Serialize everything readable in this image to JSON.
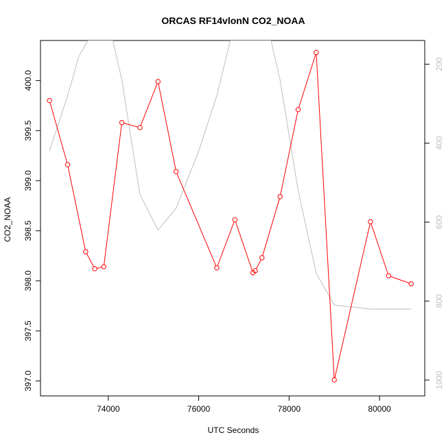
{
  "chart_data": {
    "type": "line",
    "title": "ORCAS RF14vlonN CO2_NOAA",
    "xlabel": "UTC Seconds",
    "ylabel": "CO2_NOAA",
    "xlim": [
      72500,
      81000
    ],
    "ylim": [
      396.85,
      400.4
    ],
    "x_ticks": [
      74000,
      76000,
      78000,
      80000
    ],
    "y_ticks": [
      397.0,
      397.5,
      398.0,
      398.5,
      399.0,
      399.5,
      400.0
    ],
    "y_tick_labels": [
      "397.0",
      "397.5",
      "398.0",
      "398.5",
      "399.0",
      "399.5",
      "400.0"
    ],
    "y2_lim": [
      1040,
      140
    ],
    "y2_ticks": [
      200,
      400,
      600,
      800,
      1000
    ],
    "grid": false,
    "legend": "none",
    "series": [
      {
        "color": "#ff0000",
        "axis": "left",
        "marker": "open-circle",
        "x": [
          72700,
          73100,
          73500,
          73700,
          73900,
          74300,
          74700,
          75100,
          75500,
          76400,
          76800,
          77200,
          77250,
          77400,
          77800,
          78200,
          78600,
          79000,
          79800,
          80200,
          80700
        ],
        "y": [
          399.8,
          399.16,
          398.29,
          398.12,
          398.14,
          399.58,
          399.53,
          399.99,
          399.09,
          398.13,
          398.61,
          398.08,
          398.1,
          398.23,
          398.84,
          399.71,
          400.28,
          397.01,
          398.59,
          398.05,
          397.97
        ]
      },
      {
        "color": "#bebebe",
        "axis": "right",
        "marker": "none",
        "x": [
          72700,
          73100,
          73350,
          73550,
          74100,
          74300,
          74700,
          75100,
          75500,
          76000,
          76400,
          76700,
          77600,
          77800,
          78200,
          78600,
          79000,
          79800,
          80700
        ],
        "y": [
          420,
          280,
          180,
          140,
          140,
          240,
          530,
          620,
          565,
          420,
          280,
          140,
          140,
          240,
          520,
          730,
          810,
          820,
          820
        ]
      }
    ]
  }
}
